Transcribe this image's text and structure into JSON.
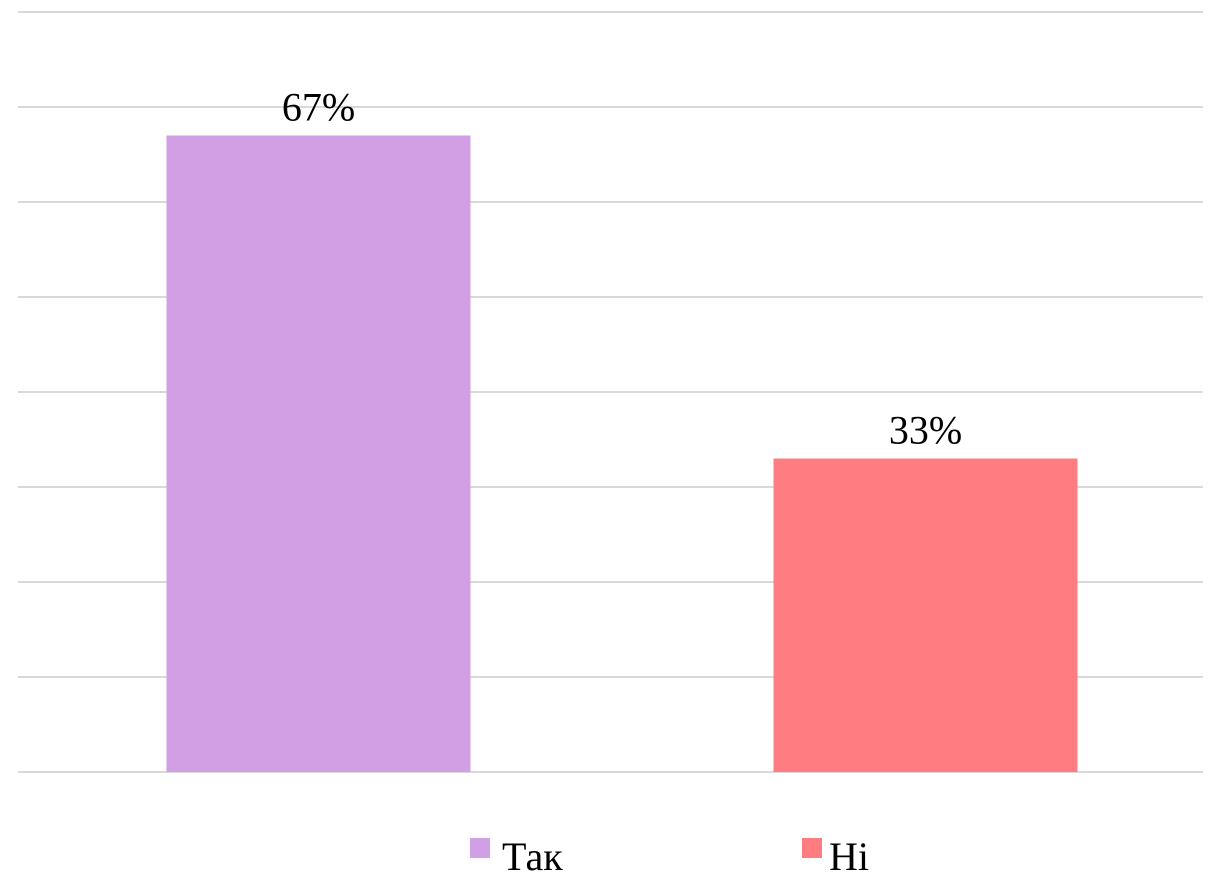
{
  "chart_data": {
    "type": "bar",
    "categories": [
      "Так",
      "Ні"
    ],
    "values": [
      67,
      33
    ],
    "value_labels": [
      "67%",
      "33%"
    ],
    "colors": [
      "#d29fe4",
      "#ff7c80"
    ],
    "ylim": [
      0,
      80
    ],
    "gridline_step": 10,
    "grid": true,
    "legend_position": "bottom"
  }
}
